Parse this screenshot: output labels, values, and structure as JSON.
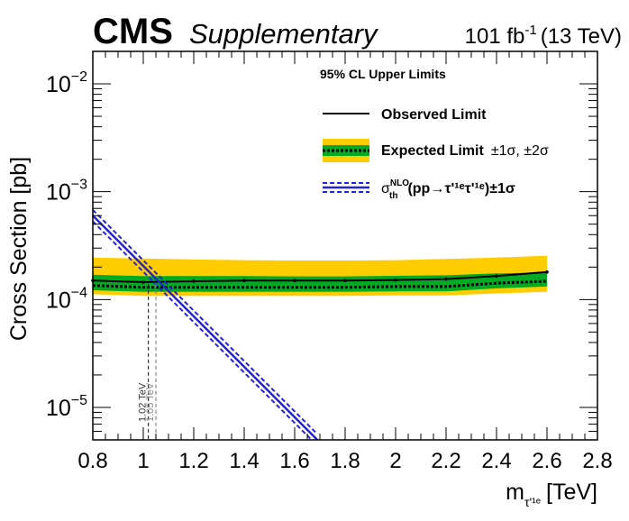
{
  "chart_data": {
    "type": "line",
    "experiment": "CMS",
    "label": "Supplementary",
    "lumi_text": "101 fb",
    "lumi_sup": "-1",
    "energy_text": "(13 TeV)",
    "legend_title": "95% CL Upper Limits",
    "legend": {
      "observed": "Observed Limit",
      "expected": "Expected Limit",
      "expected_bands": "±1σ, ±2σ",
      "theory_sigma": "σ",
      "theory_sup": "NLO",
      "theory_sub": "th",
      "theory_process": "(pp→τ'¹ᵉτ'¹ᵉ)±1σ"
    },
    "xlabel_main": "m",
    "xlabel_sub": "τ'¹ᵉ",
    "xlabel_unit": "[TeV]",
    "ylabel": "Cross Section [pb]",
    "xlim": [
      0.8,
      2.8
    ],
    "ylim": [
      5e-06,
      0.02
    ],
    "yscale": "log",
    "x_ticks": [
      "0.8",
      "1",
      "1.2",
      "1.4",
      "1.6",
      "1.8",
      "2",
      "2.2",
      "2.4",
      "2.6",
      "2.8"
    ],
    "y_ticks": [
      {
        "base": "10",
        "exp": "−5",
        "value": 1e-05
      },
      {
        "base": "10",
        "exp": "−4",
        "value": 0.0001
      },
      {
        "base": "10",
        "exp": "−3",
        "value": 0.001
      },
      {
        "base": "10",
        "exp": "−2",
        "value": 0.01
      }
    ],
    "mass_points": [
      0.8,
      1.0,
      1.2,
      1.4,
      1.6,
      1.8,
      2.0,
      2.2,
      2.4,
      2.6
    ],
    "observed": [
      0.00015,
      0.000145,
      0.000148,
      0.00015,
      0.00015,
      0.00015,
      0.000152,
      0.000155,
      0.000165,
      0.00018
    ],
    "expected": [
      0.000135,
      0.00013,
      0.00013,
      0.00013,
      0.00013,
      0.00013,
      0.000132,
      0.000132,
      0.000142,
      0.000148
    ],
    "band_1sigma_low": [
      0.000122,
      0.000118,
      0.000118,
      0.000118,
      0.000118,
      0.000118,
      0.000119,
      0.000119,
      0.000127,
      0.000132
    ],
    "band_1sigma_high": [
      0.00017,
      0.000165,
      0.000165,
      0.000165,
      0.000164,
      0.000164,
      0.000166,
      0.000168,
      0.000175,
      0.000178
    ],
    "band_2sigma_low": [
      0.000112,
      0.000108,
      0.000108,
      0.000108,
      0.000108,
      0.000108,
      0.000109,
      0.000109,
      0.000114,
      0.000118
    ],
    "band_2sigma_high": [
      0.000245,
      0.00024,
      0.000235,
      0.000232,
      0.00023,
      0.00023,
      0.000232,
      0.000238,
      0.000245,
      0.000255
    ],
    "theory": {
      "x": [
        0.8,
        1.69
      ],
      "y": [
        0.0006,
        5e-06
      ],
      "unc_factor": 1.13
    },
    "exclusion_lines": [
      {
        "mass": 1.02,
        "label": "1.02 TeV",
        "color": "#333333"
      },
      {
        "mass": 1.05,
        "label": "1.05 TeV",
        "color": "#888888"
      }
    ],
    "colors": {
      "band_2sigma": "#FFCC00",
      "band_1sigma": "#00AA22",
      "observed": "#000000",
      "expected": "#000000",
      "theory": "#2222DD",
      "frame": "#000000"
    }
  }
}
